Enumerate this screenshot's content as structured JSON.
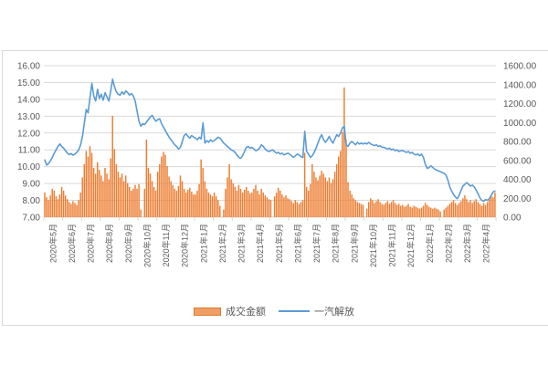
{
  "legend": {
    "bar_label": "成交金额",
    "line_label": "一汽解放"
  },
  "colors": {
    "bar": "#ED7D31",
    "line": "#5B9BD5",
    "grid": "#D9D9D9",
    "axis_text": "#595959"
  },
  "chart_data": {
    "type": "bar",
    "subtype": "combo-bar-line",
    "title": "",
    "legend_position": "bottom",
    "grid": "horizontal",
    "left_axis": {
      "min": 7,
      "max": 16,
      "step": 1,
      "tick_labels": [
        "16.00",
        "15.00",
        "14.00",
        "13.00",
        "12.00",
        "11.00",
        "10.00",
        "9.00",
        "8.00",
        "7.00"
      ]
    },
    "right_axis": {
      "min": 0,
      "max": 1600,
      "step": 200,
      "tick_labels": [
        "1600.00",
        "1400.00",
        "1200.00",
        "1000.00",
        "800.00",
        "600.00",
        "400.00",
        "200.00",
        "0.00"
      ]
    },
    "months": [
      "2020年5月",
      "2020年6月",
      "2020年7月",
      "2020年8月",
      "2020年9月",
      "2020年10月",
      "2020年11月",
      "2020年12月",
      "2021年1月",
      "2021年2月",
      "2021年3月",
      "2021年4月",
      "2021年5月",
      "2021年6月",
      "2021年7月",
      "2021年8月",
      "2021年9月",
      "2021年10月",
      "2021年11月",
      "2021年12月",
      "2022年1月",
      "2022年2月",
      "2022年3月",
      "2022年4月"
    ],
    "points_per_month": 10,
    "series": [
      {
        "name": "成交金额",
        "type": "bar",
        "axis": "right",
        "values": [
          260,
          210,
          180,
          230,
          300,
          280,
          220,
          190,
          240,
          320,
          280,
          230,
          190,
          160,
          140,
          170,
          150,
          130,
          180,
          260,
          420,
          560,
          700,
          640,
          750,
          680,
          520,
          460,
          580,
          500,
          440,
          380,
          520,
          460,
          400,
          620,
          1070,
          720,
          560,
          480,
          420,
          460,
          380,
          440,
          360,
          320,
          280,
          300,
          340,
          300,
          350,
          80,
          0,
          300,
          820,
          520,
          460,
          380,
          320,
          280,
          480,
          560,
          640,
          690,
          660,
          540,
          430,
          380,
          340,
          300,
          280,
          330,
          440,
          380,
          300,
          260,
          290,
          310,
          270,
          240,
          240,
          280,
          350,
          610,
          520,
          380,
          300,
          260,
          240,
          220,
          260,
          220,
          180,
          120,
          0,
          80,
          300,
          420,
          560,
          400,
          360,
          320,
          280,
          340,
          300,
          260,
          290,
          320,
          280,
          250,
          260,
          300,
          340,
          280,
          240,
          300,
          260,
          230,
          210,
          190,
          180,
          0,
          220,
          260,
          310,
          280,
          240,
          210,
          230,
          200,
          190,
          170,
          150,
          180,
          160,
          140,
          160,
          180,
          680,
          320,
          280,
          350,
          560,
          480,
          420,
          390,
          440,
          490,
          460,
          420,
          380,
          420,
          360,
          400,
          480,
          560,
          640,
          700,
          900,
          1370,
          820,
          370,
          280,
          240,
          200,
          180,
          160,
          150,
          140,
          130,
          0,
          90,
          160,
          200,
          180,
          150,
          170,
          190,
          160,
          140,
          130,
          150,
          170,
          140,
          160,
          180,
          150,
          130,
          140,
          120,
          130,
          110,
          120,
          140,
          110,
          100,
          120,
          110,
          100,
          90,
          100,
          120,
          150,
          130,
          110,
          100,
          90,
          100,
          90,
          80,
          60,
          0,
          80,
          100,
          120,
          140,
          160,
          180,
          150,
          130,
          150,
          170,
          200,
          230,
          190,
          160,
          180,
          150,
          170,
          190,
          160,
          140,
          120,
          150,
          130,
          160,
          190,
          230,
          210,
          260
        ]
      },
      {
        "name": "一汽解放",
        "type": "line",
        "axis": "left",
        "values": [
          10.4,
          10.1,
          10.18,
          10.35,
          10.55,
          10.8,
          11.0,
          11.2,
          11.35,
          11.2,
          11.1,
          10.95,
          10.8,
          10.72,
          10.78,
          10.68,
          10.75,
          10.85,
          11.0,
          11.3,
          11.8,
          12.6,
          13.4,
          13.2,
          14.1,
          14.95,
          14.2,
          13.9,
          14.6,
          14.05,
          14.3,
          13.95,
          14.4,
          14.15,
          13.9,
          14.5,
          15.2,
          14.75,
          14.45,
          14.3,
          14.25,
          14.45,
          14.3,
          14.5,
          14.4,
          14.25,
          14.35,
          14.2,
          13.9,
          13.3,
          12.7,
          12.4,
          12.55,
          12.5,
          12.65,
          12.8,
          12.95,
          13.05,
          12.85,
          12.7,
          12.8,
          12.85,
          12.55,
          12.35,
          12.15,
          11.95,
          11.75,
          11.6,
          11.45,
          11.3,
          11.2,
          11.05,
          11.15,
          11.5,
          11.85,
          11.95,
          11.8,
          11.7,
          11.85,
          11.75,
          11.7,
          11.6,
          11.75,
          11.65,
          12.6,
          11.4,
          11.55,
          11.45,
          11.6,
          11.5,
          11.55,
          11.65,
          11.75,
          11.7,
          11.55,
          11.4,
          11.3,
          11.2,
          11.1,
          11.0,
          10.95,
          10.85,
          10.7,
          10.55,
          10.5,
          10.65,
          10.9,
          11.15,
          11.2,
          11.1,
          11.15,
          11.05,
          10.95,
          11.0,
          11.1,
          11.3,
          11.2,
          11.05,
          10.95,
          10.9,
          10.95,
          11.0,
          10.9,
          10.8,
          10.85,
          10.75,
          10.8,
          10.7,
          10.75,
          10.8,
          10.75,
          10.65,
          10.55,
          10.65,
          10.75,
          10.7,
          10.6,
          10.55,
          12.1,
          10.9,
          10.75,
          10.55,
          10.65,
          10.85,
          11.1,
          11.4,
          11.7,
          11.9,
          11.6,
          11.45,
          11.6,
          11.8,
          11.55,
          11.4,
          11.65,
          11.9,
          11.8,
          12.0,
          12.3,
          12.4,
          11.3,
          11.2,
          11.4,
          11.5,
          11.4,
          11.3,
          11.45,
          11.35,
          11.4,
          11.35,
          11.4,
          11.35,
          11.45,
          11.35,
          11.3,
          11.25,
          11.3,
          11.2,
          11.25,
          11.15,
          11.15,
          11.1,
          11.05,
          11.1,
          11.0,
          11.05,
          10.95,
          11.0,
          10.9,
          10.95,
          10.95,
          10.9,
          10.85,
          10.9,
          10.8,
          10.85,
          10.75,
          10.7,
          10.75,
          10.65,
          10.75,
          10.55,
          10.15,
          9.9,
          9.95,
          10.05,
          9.95,
          9.85,
          9.8,
          9.75,
          9.7,
          9.65,
          9.6,
          9.5,
          9.2,
          8.8,
          8.55,
          8.35,
          8.2,
          8.1,
          8.3,
          8.6,
          8.85,
          8.95,
          9.05,
          8.95,
          8.85,
          8.9,
          8.8,
          8.6,
          8.4,
          8.15,
          8.0,
          7.95,
          8.05,
          8.0,
          8.1,
          8.3,
          8.5,
          8.55
        ]
      }
    ]
  }
}
